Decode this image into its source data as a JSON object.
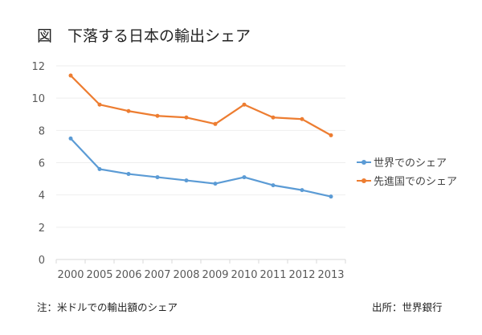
{
  "chart_data": {
    "type": "line",
    "title": "図　下落する日本の輸出シェア",
    "categories": [
      "2000",
      "2005",
      "2006",
      "2007",
      "2008",
      "2009",
      "2010",
      "2011",
      "2012",
      "2013"
    ],
    "series": [
      {
        "name": "世界でのシェア",
        "color": "#5b9bd5",
        "values": [
          7.5,
          5.6,
          5.3,
          5.1,
          4.9,
          4.7,
          5.1,
          4.6,
          4.3,
          3.9
        ]
      },
      {
        "name": "先進国でのシェア",
        "color": "#ed7d31",
        "values": [
          11.4,
          9.6,
          9.2,
          8.9,
          8.8,
          8.4,
          9.6,
          8.8,
          8.7,
          7.7
        ]
      }
    ],
    "yticks": [
      0,
      2,
      4,
      6,
      8,
      10,
      12
    ],
    "ylim": [
      0,
      12
    ],
    "grid": true,
    "legend": "right",
    "xlabel": "",
    "ylabel": ""
  },
  "note": "注：米ドルでの輸出額のシェア",
  "source": "出所：世界銀行"
}
